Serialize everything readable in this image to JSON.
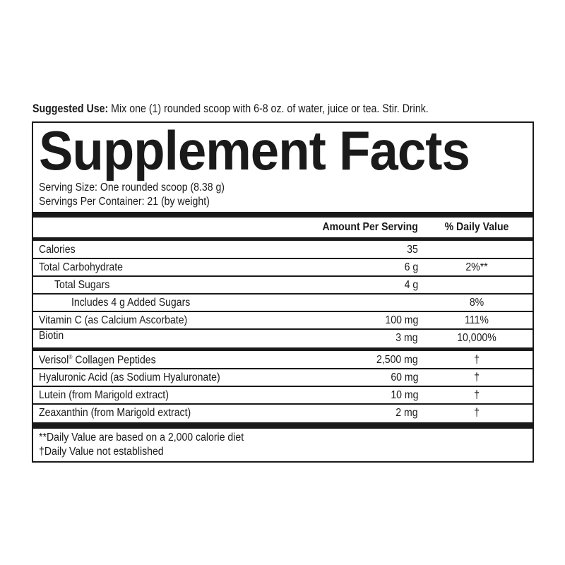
{
  "suggested_use": {
    "label": "Suggested Use:",
    "text": " Mix one (1) rounded scoop with 6-8 oz. of water, juice or tea. Stir. Drink."
  },
  "title": "Supplement Facts",
  "serving_size": "Serving Size: One rounded scoop (8.38 g)",
  "servings_per_container": "Servings Per Container: 21 (by weight)",
  "header": {
    "amount": "Amount Per Serving",
    "dv": "% Daily Value"
  },
  "rows": [
    {
      "name": "Calories",
      "amount": "35",
      "dv": ""
    },
    {
      "name": "Total Carbohydrate",
      "amount": "6 g",
      "dv": "2%**"
    },
    {
      "name": "Total Sugars",
      "amount": "4 g",
      "dv": ""
    },
    {
      "name": "Includes 4 g Added Sugars",
      "amount": "",
      "dv": "8%"
    },
    {
      "name": "Vitamin C (as Calcium Ascorbate)",
      "amount": "100 mg",
      "dv": "111%"
    },
    {
      "name": "Biotin",
      "amount": "3 mg",
      "dv": "10,000%"
    }
  ],
  "rows2": [
    {
      "name": "Verisol",
      "sup": "®",
      "name_rest": " Collagen Peptides",
      "amount": "2,500 mg",
      "dv": "†"
    },
    {
      "name": "Hyaluronic Acid (as Sodium Hyaluronate)",
      "amount": "60 mg",
      "dv": "†"
    },
    {
      "name": "Lutein (from Marigold extract)",
      "amount": "10 mg",
      "dv": "†"
    },
    {
      "name": "Zeaxanthin (from Marigold extract)",
      "amount": "2 mg",
      "dv": "†"
    }
  ],
  "footnotes": [
    "**Daily Value are based on a 2,000 calorie diet",
    "†Daily Value not established"
  ]
}
